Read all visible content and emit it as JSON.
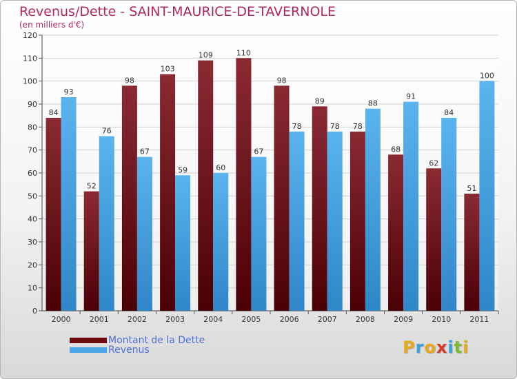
{
  "chart_data": {
    "type": "bar",
    "title": "Revenus/Dette - SAINT-MAURICE-DE-TAVERNOLE",
    "subtitle": "(en milliers d'€)",
    "categories": [
      "2000",
      "2001",
      "2002",
      "2003",
      "2004",
      "2005",
      "2006",
      "2007",
      "2008",
      "2009",
      "2010",
      "2011"
    ],
    "series": [
      {
        "name": "Montant de la Dette",
        "values": [
          84,
          52,
          98,
          103,
          109,
          110,
          98,
          89,
          78,
          68,
          62,
          51
        ],
        "color": "#6b0b10"
      },
      {
        "name": "Revenus",
        "values": [
          93,
          76,
          67,
          59,
          60,
          67,
          78,
          78,
          88,
          91,
          84,
          100
        ],
        "color": "#4aa6e6"
      }
    ],
    "ylim": [
      0,
      120
    ],
    "yticks": [
      0,
      10,
      20,
      30,
      40,
      50,
      60,
      70,
      80,
      90,
      100,
      110,
      120
    ],
    "grid": true,
    "legend_position": "bottom-left"
  },
  "brand": {
    "letters": [
      "P",
      "r",
      "o",
      "x",
      "i",
      "t",
      "i"
    ],
    "colors": [
      "#e8a81c",
      "#3aa0d8",
      "#e8a81c",
      "#d83a2a",
      "#3aa0d8",
      "#7cbb2e",
      "#e8a81c"
    ]
  }
}
